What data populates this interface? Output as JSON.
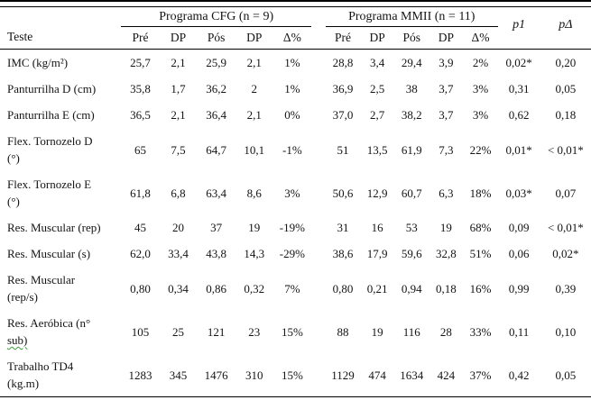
{
  "table": {
    "col_label_header": "Teste",
    "groups": [
      {
        "label": "Programa CFG (n = 9)"
      },
      {
        "label": "Programa MMII (n = 11)"
      }
    ],
    "subcols": [
      "Pré",
      "DP",
      "Pós",
      "DP",
      "Δ%"
    ],
    "p_cols": [
      "p1",
      "pΔ"
    ],
    "rows": [
      {
        "label": "IMC (kg/m²)",
        "cfg": [
          "25,7",
          "2,1",
          "25,9",
          "2,1",
          "1%"
        ],
        "mmii": [
          "28,8",
          "3,4",
          "29,4",
          "3,9",
          "2%"
        ],
        "p1": "0,02*",
        "pdelta": "0,20"
      },
      {
        "label": "Panturrilha D (cm)",
        "cfg": [
          "35,8",
          "1,7",
          "36,2",
          "2",
          "1%"
        ],
        "mmii": [
          "36,9",
          "2,5",
          "38",
          "3,7",
          "3%"
        ],
        "p1": "0,31",
        "pdelta": "0,05"
      },
      {
        "label": "Panturrilha E (cm)",
        "cfg": [
          "36,5",
          "2,1",
          "36,4",
          "2,1",
          "0%"
        ],
        "mmii": [
          "37,0",
          "2,7",
          "38,2",
          "3,7",
          "3%"
        ],
        "p1": "0,62",
        "pdelta": "0,18"
      },
      {
        "label": "Flex. Tornozelo D\n(°)",
        "cfg": [
          "65",
          "7,5",
          "64,7",
          "10,1",
          "-1%"
        ],
        "mmii": [
          "51",
          "13,5",
          "61,9",
          "7,3",
          "22%"
        ],
        "p1": "0,01*",
        "pdelta": "< 0,01*"
      },
      {
        "label": "Flex. Tornozelo E\n(°)",
        "cfg": [
          "61,8",
          "6,8",
          "63,4",
          "8,6",
          "3%"
        ],
        "mmii": [
          "50,6",
          "12,9",
          "60,7",
          "6,3",
          "18%"
        ],
        "p1": "0,03*",
        "pdelta": "0,07"
      },
      {
        "label": "Res. Muscular (rep)",
        "cfg": [
          "45",
          "20",
          "37",
          "19",
          "-19%"
        ],
        "mmii": [
          "31",
          "16",
          "53",
          "19",
          "68%"
        ],
        "p1": "0,09",
        "pdelta": "< 0,01*"
      },
      {
        "label": "Res. Muscular (s)",
        "cfg": [
          "62,0",
          "33,4",
          "43,8",
          "14,3",
          "-29%"
        ],
        "mmii": [
          "38,6",
          "17,9",
          "59,6",
          "32,8",
          "51%"
        ],
        "p1": "0,06",
        "pdelta": "0,02*"
      },
      {
        "label": "Res. Muscular\n(rep/s)",
        "cfg": [
          "0,80",
          "0,34",
          "0,86",
          "0,32",
          "7%"
        ],
        "mmii": [
          "0,80",
          "0,21",
          "0,94",
          "0,18",
          "16%"
        ],
        "p1": "0,99",
        "pdelta": "0,39"
      },
      {
        "label": "Res. Aeróbica (n°\nsub)",
        "green_word": "sub)",
        "cfg": [
          "105",
          "25",
          "121",
          "23",
          "15%"
        ],
        "mmii": [
          "88",
          "19",
          "116",
          "28",
          "33%"
        ],
        "p1": "0,11",
        "pdelta": "0,10"
      },
      {
        "label": "Trabalho TD4\n(kg.m)",
        "cfg": [
          "1283",
          "345",
          "1476",
          "310",
          "15%"
        ],
        "mmii": [
          "1129",
          "474",
          "1634",
          "424",
          "37%"
        ],
        "p1": "0,42",
        "pdelta": "0,05"
      }
    ]
  },
  "colors": {
    "rule": "#000000",
    "text": "#141414",
    "spellcheck_green": "#3a9a3a"
  }
}
